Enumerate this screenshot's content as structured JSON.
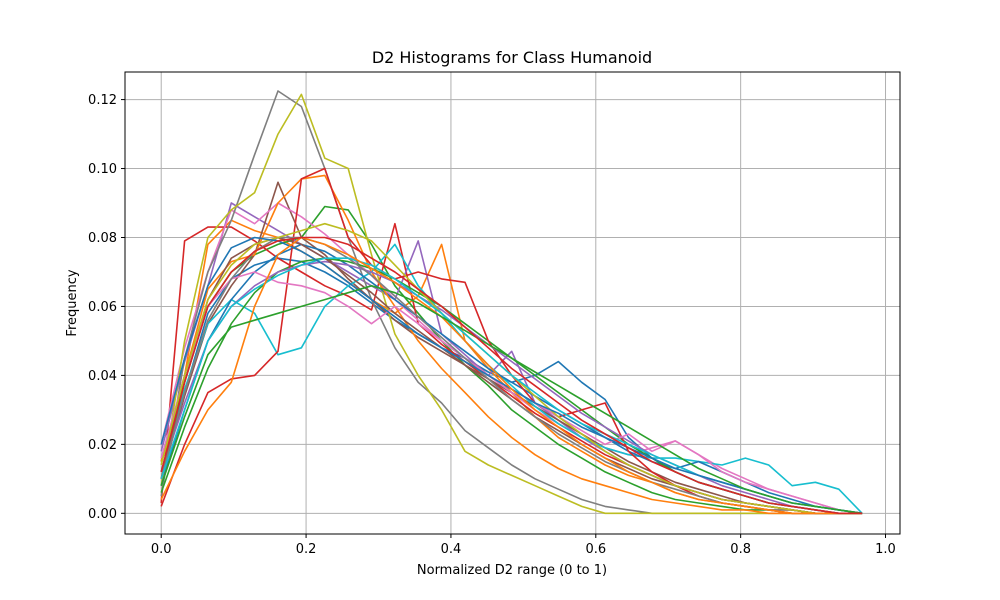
{
  "chart_data": {
    "type": "line",
    "title": "D2 Histograms for Class Humanoid",
    "xlabel": "Normalized D2 range (0 to 1)",
    "ylabel": "Frequency",
    "xlim": [
      -0.05,
      1.02
    ],
    "ylim": [
      -0.006,
      0.128
    ],
    "xticks": [
      "0.0",
      "0.2",
      "0.4",
      "0.6",
      "0.8",
      "1.0"
    ],
    "yticks": [
      "0.00",
      "0.02",
      "0.04",
      "0.06",
      "0.08",
      "0.10",
      "0.12"
    ],
    "grid": true,
    "legend": "none",
    "x": [
      0.0,
      0.0323,
      0.0645,
      0.0968,
      0.129,
      0.1613,
      0.1935,
      0.2258,
      0.2581,
      0.2903,
      0.3226,
      0.3548,
      0.3871,
      0.4194,
      0.4516,
      0.4839,
      0.5161,
      0.5484,
      0.5806,
      0.6129,
      0.6452,
      0.6774,
      0.7097,
      0.7419,
      0.7742,
      0.8065,
      0.8387,
      0.871,
      0.9032,
      0.9355,
      0.9677
    ],
    "series": [
      {
        "color": "#1f77b4",
        "values": [
          0.012,
          0.035,
          0.058,
          0.068,
          0.072,
          0.074,
          0.073,
          0.07,
          0.066,
          0.061,
          0.056,
          0.052,
          0.048,
          0.045,
          0.041,
          0.038,
          0.04,
          0.044,
          0.038,
          0.033,
          0.022,
          0.016,
          0.012,
          0.009,
          0.007,
          0.005,
          0.003,
          0.002,
          0.001,
          0.0,
          0.0
        ]
      },
      {
        "color": "#ff7f0e",
        "values": [
          0.01,
          0.04,
          0.078,
          0.085,
          0.082,
          0.08,
          0.076,
          0.072,
          0.067,
          0.062,
          0.058,
          0.063,
          0.078,
          0.05,
          0.042,
          0.035,
          0.028,
          0.022,
          0.018,
          0.014,
          0.011,
          0.009,
          0.006,
          0.004,
          0.003,
          0.002,
          0.001,
          0.001,
          0.0,
          0.0,
          0.0
        ]
      },
      {
        "color": "#2ca02c",
        "values": [
          0.015,
          0.038,
          0.06,
          0.07,
          0.075,
          0.078,
          0.08,
          0.089,
          0.088,
          0.078,
          0.066,
          0.058,
          0.05,
          0.043,
          0.037,
          0.03,
          0.025,
          0.02,
          0.016,
          0.012,
          0.009,
          0.006,
          0.004,
          0.003,
          0.002,
          0.001,
          0.001,
          0.0,
          0.0,
          0.0,
          0.0
        ]
      },
      {
        "color": "#d62728",
        "values": [
          0.003,
          0.079,
          0.083,
          0.083,
          0.079,
          0.074,
          0.07,
          0.066,
          0.063,
          0.059,
          0.084,
          0.055,
          0.049,
          0.044,
          0.039,
          0.034,
          0.029,
          0.025,
          0.021,
          0.017,
          0.014,
          0.011,
          0.008,
          0.006,
          0.004,
          0.003,
          0.002,
          0.001,
          0.0,
          0.0,
          0.0
        ]
      },
      {
        "color": "#9467bd",
        "values": [
          0.018,
          0.044,
          0.066,
          0.09,
          0.086,
          0.082,
          0.078,
          0.074,
          0.07,
          0.066,
          0.062,
          0.079,
          0.052,
          0.046,
          0.04,
          0.047,
          0.032,
          0.027,
          0.022,
          0.018,
          0.014,
          0.011,
          0.008,
          0.006,
          0.004,
          0.003,
          0.002,
          0.001,
          0.0,
          0.0,
          0.0
        ]
      },
      {
        "color": "#8c564b",
        "values": [
          0.01,
          0.034,
          0.055,
          0.066,
          0.075,
          0.096,
          0.08,
          0.075,
          0.068,
          0.062,
          0.056,
          0.051,
          0.047,
          0.043,
          0.039,
          0.035,
          0.031,
          0.027,
          0.023,
          0.019,
          0.015,
          0.012,
          0.009,
          0.007,
          0.005,
          0.003,
          0.002,
          0.001,
          0.0,
          0.0,
          0.0
        ]
      },
      {
        "color": "#e377c2",
        "values": [
          0.02,
          0.048,
          0.07,
          0.088,
          0.084,
          0.09,
          0.086,
          0.081,
          0.075,
          0.069,
          0.062,
          0.056,
          0.05,
          0.045,
          0.04,
          0.035,
          0.03,
          0.026,
          0.022,
          0.019,
          0.017,
          0.019,
          0.021,
          0.017,
          0.013,
          0.01,
          0.007,
          0.005,
          0.003,
          0.001,
          0.0
        ]
      },
      {
        "color": "#7f7f7f",
        "values": [
          0.005,
          0.045,
          0.07,
          0.085,
          0.104,
          0.1225,
          0.118,
          0.1,
          0.08,
          0.062,
          0.048,
          0.038,
          0.032,
          0.024,
          0.019,
          0.014,
          0.01,
          0.007,
          0.004,
          0.002,
          0.001,
          0.0,
          0.0,
          0.0,
          0.0,
          0.0,
          0.0,
          0.0,
          0.0,
          0.0,
          0.0
        ]
      },
      {
        "color": "#bcbd22",
        "values": [
          0.008,
          0.05,
          0.08,
          0.088,
          0.093,
          0.11,
          0.1215,
          0.103,
          0.1,
          0.075,
          0.052,
          0.04,
          0.03,
          0.018,
          0.014,
          0.011,
          0.008,
          0.005,
          0.002,
          0.0,
          0.0,
          0.0,
          0.0,
          0.0,
          0.0,
          0.0,
          0.0,
          0.0,
          0.0,
          0.0,
          0.0
        ]
      },
      {
        "color": "#17becf",
        "values": [
          0.012,
          0.036,
          0.055,
          0.062,
          0.058,
          0.046,
          0.048,
          0.06,
          0.066,
          0.07,
          0.078,
          0.066,
          0.058,
          0.05,
          0.043,
          0.037,
          0.031,
          0.026,
          0.022,
          0.019,
          0.017,
          0.016,
          0.016,
          0.015,
          0.014,
          0.016,
          0.014,
          0.008,
          0.009,
          0.007,
          0.0
        ]
      },
      {
        "color": "#1f77b4",
        "values": [
          0.008,
          0.03,
          0.05,
          0.062,
          0.07,
          0.075,
          0.078,
          0.076,
          0.072,
          0.067,
          0.062,
          0.057,
          0.052,
          0.047,
          0.042,
          0.038,
          0.034,
          0.03,
          0.026,
          0.022,
          0.018,
          0.015,
          0.013,
          0.015,
          0.012,
          0.009,
          0.006,
          0.004,
          0.002,
          0.001,
          0.0
        ]
      },
      {
        "color": "#ff7f0e",
        "values": [
          0.015,
          0.04,
          0.065,
          0.073,
          0.075,
          0.09,
          0.097,
          0.098,
          0.085,
          0.07,
          0.06,
          0.05,
          0.042,
          0.035,
          0.028,
          0.022,
          0.017,
          0.013,
          0.01,
          0.008,
          0.006,
          0.004,
          0.003,
          0.002,
          0.001,
          0.001,
          0.0,
          0.0,
          0.0,
          0.0,
          0.0
        ]
      },
      {
        "color": "#2ca02c",
        "values": [
          0.006,
          0.025,
          0.042,
          0.055,
          0.064,
          0.07,
          0.073,
          0.074,
          0.073,
          0.071,
          0.068,
          0.064,
          0.06,
          0.055,
          0.05,
          0.045,
          0.04,
          0.035,
          0.03,
          0.025,
          0.02,
          0.016,
          0.012,
          0.009,
          0.007,
          0.005,
          0.003,
          0.002,
          0.001,
          0.0,
          0.0
        ]
      },
      {
        "color": "#d62728",
        "values": [
          0.002,
          0.02,
          0.035,
          0.039,
          0.04,
          0.047,
          0.097,
          0.1,
          0.08,
          0.072,
          0.068,
          0.07,
          0.068,
          0.067,
          0.05,
          0.04,
          0.032,
          0.028,
          0.03,
          0.032,
          0.018,
          0.012,
          0.008,
          0.005,
          0.003,
          0.002,
          0.001,
          0.0,
          0.0,
          0.0,
          0.0
        ]
      },
      {
        "color": "#9467bd",
        "values": [
          0.012,
          0.032,
          0.05,
          0.06,
          0.066,
          0.07,
          0.072,
          0.073,
          0.072,
          0.07,
          0.067,
          0.063,
          0.059,
          0.054,
          0.049,
          0.044,
          0.039,
          0.034,
          0.029,
          0.025,
          0.021,
          0.017,
          0.014,
          0.011,
          0.008,
          0.006,
          0.004,
          0.002,
          0.001,
          0.0,
          0.0
        ]
      },
      {
        "color": "#8c564b",
        "values": [
          0.01,
          0.038,
          0.062,
          0.074,
          0.078,
          0.08,
          0.078,
          0.074,
          0.069,
          0.064,
          0.058,
          0.053,
          0.048,
          0.043,
          0.038,
          0.033,
          0.028,
          0.024,
          0.02,
          0.016,
          0.013,
          0.01,
          0.008,
          0.006,
          0.004,
          0.003,
          0.002,
          0.001,
          0.0,
          0.0,
          0.0
        ]
      },
      {
        "color": "#e377c2",
        "values": [
          0.016,
          0.04,
          0.06,
          0.068,
          0.07,
          0.067,
          0.066,
          0.064,
          0.06,
          0.055,
          0.06,
          0.055,
          0.05,
          0.045,
          0.04,
          0.036,
          0.032,
          0.028,
          0.024,
          0.02,
          0.023,
          0.018,
          0.021,
          0.017,
          0.012,
          0.009,
          0.007,
          0.005,
          0.003,
          0.001,
          0.0
        ]
      },
      {
        "color": "#7f7f7f",
        "values": [
          0.01,
          0.035,
          0.056,
          0.068,
          0.076,
          0.08,
          0.08,
          0.078,
          0.074,
          0.069,
          0.063,
          0.057,
          0.051,
          0.045,
          0.039,
          0.033,
          0.028,
          0.023,
          0.019,
          0.015,
          0.012,
          0.009,
          0.007,
          0.005,
          0.003,
          0.002,
          0.001,
          0.001,
          0.0,
          0.0,
          0.0
        ]
      },
      {
        "color": "#bcbd22",
        "values": [
          0.014,
          0.04,
          0.062,
          0.072,
          0.078,
          0.08,
          0.082,
          0.084,
          0.082,
          0.079,
          0.072,
          0.065,
          0.058,
          0.052,
          0.046,
          0.04,
          0.034,
          0.028,
          0.023,
          0.018,
          0.014,
          0.011,
          0.008,
          0.006,
          0.004,
          0.003,
          0.002,
          0.001,
          0.0,
          0.0,
          0.0
        ]
      },
      {
        "color": "#17becf",
        "values": [
          0.01,
          0.03,
          0.05,
          0.06,
          0.065,
          0.069,
          0.072,
          0.074,
          0.074,
          0.072,
          0.068,
          0.063,
          0.058,
          0.052,
          0.046,
          0.04,
          0.035,
          0.03,
          0.026,
          0.023,
          0.02,
          0.017,
          0.014,
          0.011,
          0.009,
          0.007,
          0.005,
          0.003,
          0.002,
          0.001,
          0.0
        ]
      },
      {
        "color": "#1f77b4",
        "values": [
          0.02,
          0.045,
          0.066,
          0.077,
          0.08,
          0.079,
          0.076,
          0.072,
          0.067,
          0.062,
          0.057,
          0.052,
          0.048,
          0.044,
          0.04,
          0.036,
          0.032,
          0.029,
          0.025,
          0.022,
          0.019,
          0.016,
          0.013,
          0.011,
          0.009,
          0.007,
          0.005,
          0.003,
          0.002,
          0.001,
          0.0
        ]
      },
      {
        "color": "#ff7f0e",
        "values": [
          0.004,
          0.018,
          0.03,
          0.038,
          0.06,
          0.075,
          0.08,
          0.078,
          0.075,
          0.071,
          0.067,
          0.062,
          0.057,
          0.05,
          0.043,
          0.036,
          0.03,
          0.025,
          0.02,
          0.016,
          0.012,
          0.009,
          0.006,
          0.004,
          0.003,
          0.002,
          0.001,
          0.0,
          0.0,
          0.0,
          0.0
        ]
      },
      {
        "color": "#2ca02c",
        "values": [
          0.008,
          0.028,
          0.046,
          0.054,
          0.056,
          0.058,
          0.06,
          0.062,
          0.064,
          0.066,
          0.064,
          0.061,
          0.057,
          0.053,
          0.049,
          0.045,
          0.041,
          0.037,
          0.033,
          0.029,
          0.025,
          0.021,
          0.017,
          0.013,
          0.01,
          0.007,
          0.005,
          0.003,
          0.002,
          0.001,
          0.0
        ]
      },
      {
        "color": "#d62728",
        "values": [
          0.012,
          0.038,
          0.06,
          0.07,
          0.076,
          0.079,
          0.08,
          0.08,
          0.078,
          0.074,
          0.07,
          0.065,
          0.06,
          0.054,
          0.048,
          0.042,
          0.037,
          0.032,
          0.027,
          0.023,
          0.019,
          0.015,
          0.012,
          0.009,
          0.007,
          0.005,
          0.003,
          0.002,
          0.001,
          0.0,
          0.0
        ]
      }
    ]
  }
}
